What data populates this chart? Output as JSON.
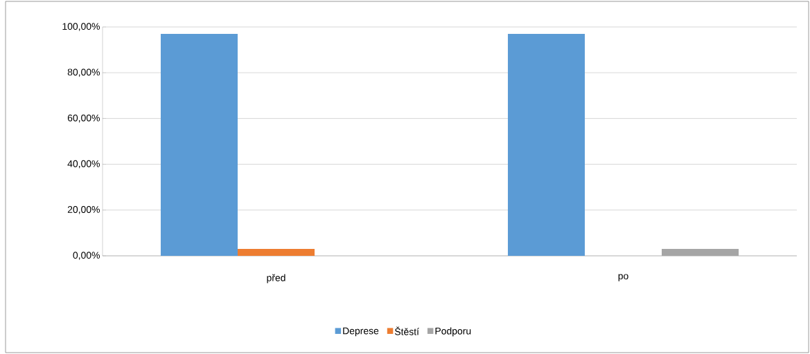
{
  "chart_data": {
    "type": "bar",
    "categories": [
      "před",
      "po"
    ],
    "series": [
      {
        "name": "Deprese",
        "color": "#5b9bd5",
        "values": [
          97,
          97
        ]
      },
      {
        "name": "Štěstí",
        "color": "#ed7d31",
        "values": [
          3,
          0
        ]
      },
      {
        "name": "Podporu",
        "color": "#a5a5a5",
        "values": [
          0,
          3
        ]
      }
    ],
    "ylim": [
      0,
      100
    ],
    "yticks": [
      {
        "value": 0,
        "label": "0,00%"
      },
      {
        "value": 20,
        "label": "20,00%"
      },
      {
        "value": 40,
        "label": "40,00%"
      },
      {
        "value": 60,
        "label": "60,00%"
      },
      {
        "value": 80,
        "label": "80,00%"
      },
      {
        "value": 100,
        "label": "100,00%"
      }
    ],
    "grid": "y",
    "legend": "bottom"
  }
}
